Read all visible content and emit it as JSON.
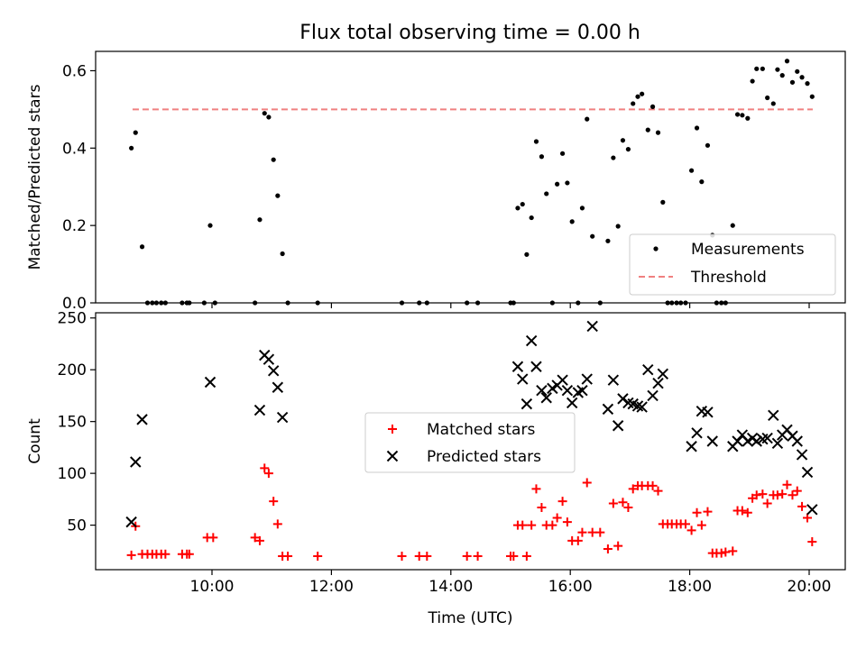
{
  "figure": {
    "title": "Flux total observing time = 0.00 h"
  },
  "chart_data": [
    {
      "type": "scatter",
      "ylabel": "Matched/Predicted stars",
      "xlabel": "",
      "xlim_hours": [
        8.05,
        20.6
      ],
      "ylim": [
        0,
        0.65
      ],
      "yticks": [
        "0.0",
        "0.2",
        "0.4",
        "0.6"
      ],
      "xticks_hours": [
        10,
        12,
        14,
        16,
        18,
        20
      ],
      "legend_position": "lower-right",
      "threshold": {
        "name": "Threshold",
        "value": 0.5,
        "x_range_hours": [
          8.67,
          20.06
        ],
        "color": "#f08080",
        "style": "dashed"
      },
      "series": [
        {
          "name": "Measurements",
          "color": "#000000",
          "marker": "dot",
          "points": [
            [
              8.65,
              0.4
            ],
            [
              8.72,
              0.44
            ],
            [
              8.83,
              0.145
            ],
            [
              8.92,
              0
            ],
            [
              9.0,
              0
            ],
            [
              9.07,
              0
            ],
            [
              9.15,
              0
            ],
            [
              9.22,
              0
            ],
            [
              9.5,
              0
            ],
            [
              9.58,
              0
            ],
            [
              9.62,
              0
            ],
            [
              9.87,
              0
            ],
            [
              9.97,
              0.2
            ],
            [
              10.05,
              0
            ],
            [
              10.72,
              0
            ],
            [
              10.8,
              0.215
            ],
            [
              10.88,
              0.49
            ],
            [
              10.95,
              0.48
            ],
            [
              11.03,
              0.37
            ],
            [
              11.1,
              0.277
            ],
            [
              11.18,
              0.127
            ],
            [
              11.27,
              0
            ],
            [
              11.77,
              0
            ],
            [
              13.18,
              0
            ],
            [
              13.47,
              0
            ],
            [
              13.6,
              0
            ],
            [
              14.27,
              0
            ],
            [
              14.45,
              0
            ],
            [
              15.0,
              0
            ],
            [
              15.05,
              0
            ],
            [
              15.12,
              0.245
            ],
            [
              15.2,
              0.255
            ],
            [
              15.27,
              0.125
            ],
            [
              15.35,
              0.22
            ],
            [
              15.43,
              0.417
            ],
            [
              15.52,
              0.378
            ],
            [
              15.6,
              0.282
            ],
            [
              15.7,
              0
            ],
            [
              15.78,
              0.307
            ],
            [
              15.87,
              0.386
            ],
            [
              15.95,
              0.31
            ],
            [
              16.03,
              0.21
            ],
            [
              16.13,
              0
            ],
            [
              16.2,
              0.245
            ],
            [
              16.28,
              0.475
            ],
            [
              16.37,
              0.172
            ],
            [
              16.5,
              0
            ],
            [
              16.63,
              0.16
            ],
            [
              16.72,
              0.375
            ],
            [
              16.8,
              0.198
            ],
            [
              16.88,
              0.42
            ],
            [
              16.97,
              0.397
            ],
            [
              17.05,
              0.515
            ],
            [
              17.13,
              0.533
            ],
            [
              17.2,
              0.54
            ],
            [
              17.3,
              0.447
            ],
            [
              17.38,
              0.507
            ],
            [
              17.47,
              0.44
            ],
            [
              17.55,
              0.26
            ],
            [
              17.63,
              0
            ],
            [
              17.7,
              0
            ],
            [
              17.78,
              0
            ],
            [
              17.85,
              0
            ],
            [
              17.93,
              0
            ],
            [
              18.03,
              0.342
            ],
            [
              18.12,
              0.452
            ],
            [
              18.2,
              0.313
            ],
            [
              18.3,
              0.407
            ],
            [
              18.38,
              0.175
            ],
            [
              18.45,
              0
            ],
            [
              18.53,
              0
            ],
            [
              18.6,
              0
            ],
            [
              18.72,
              0.2
            ],
            [
              18.8,
              0.487
            ],
            [
              18.88,
              0.485
            ],
            [
              18.97,
              0.477
            ],
            [
              19.05,
              0.573
            ],
            [
              19.12,
              0.605
            ],
            [
              19.22,
              0.605
            ],
            [
              19.3,
              0.53
            ],
            [
              19.4,
              0.515
            ],
            [
              19.47,
              0.603
            ],
            [
              19.55,
              0.588
            ],
            [
              19.63,
              0.625
            ],
            [
              19.72,
              0.57
            ],
            [
              19.8,
              0.598
            ],
            [
              19.88,
              0.583
            ],
            [
              19.97,
              0.567
            ],
            [
              20.05,
              0.533
            ]
          ]
        }
      ]
    },
    {
      "type": "scatter",
      "ylabel": "Count",
      "xlabel": "Time (UTC)",
      "xlim_hours": [
        8.05,
        20.6
      ],
      "ylim": [
        7,
        255
      ],
      "yticks": [
        "50",
        "100",
        "150",
        "200",
        "250"
      ],
      "xticks": [
        "10:00",
        "12:00",
        "14:00",
        "16:00",
        "18:00",
        "20:00"
      ],
      "xticks_hours": [
        10,
        12,
        14,
        16,
        18,
        20
      ],
      "legend_position": "center",
      "series": [
        {
          "name": "Matched stars",
          "color": "#ff0000",
          "marker": "plus",
          "points": [
            [
              8.65,
              21
            ],
            [
              8.72,
              49
            ],
            [
              8.83,
              22
            ],
            [
              8.92,
              22
            ],
            [
              9.0,
              22
            ],
            [
              9.07,
              22
            ],
            [
              9.15,
              22
            ],
            [
              9.22,
              22
            ],
            [
              9.5,
              22
            ],
            [
              9.58,
              22
            ],
            [
              9.62,
              22
            ],
            [
              9.92,
              38
            ],
            [
              10.02,
              38
            ],
            [
              10.72,
              38
            ],
            [
              10.8,
              35
            ],
            [
              10.88,
              105
            ],
            [
              10.95,
              100
            ],
            [
              11.03,
              73
            ],
            [
              11.1,
              51
            ],
            [
              11.18,
              20
            ],
            [
              11.27,
              20
            ],
            [
              11.77,
              20
            ],
            [
              13.18,
              20
            ],
            [
              13.47,
              20
            ],
            [
              13.6,
              20
            ],
            [
              14.27,
              20
            ],
            [
              14.45,
              20
            ],
            [
              15.0,
              20
            ],
            [
              15.05,
              20
            ],
            [
              15.12,
              50
            ],
            [
              15.2,
              50
            ],
            [
              15.27,
              20
            ],
            [
              15.35,
              50
            ],
            [
              15.43,
              85
            ],
            [
              15.52,
              67
            ],
            [
              15.6,
              50
            ],
            [
              15.7,
              50
            ],
            [
              15.78,
              57
            ],
            [
              15.87,
              73
            ],
            [
              15.95,
              53
            ],
            [
              16.03,
              35
            ],
            [
              16.13,
              35
            ],
            [
              16.2,
              43
            ],
            [
              16.28,
              91
            ],
            [
              16.37,
              43
            ],
            [
              16.5,
              43
            ],
            [
              16.63,
              27
            ],
            [
              16.72,
              71
            ],
            [
              16.8,
              30
            ],
            [
              16.88,
              72
            ],
            [
              16.97,
              67
            ],
            [
              17.05,
              85
            ],
            [
              17.13,
              88
            ],
            [
              17.2,
              88
            ],
            [
              17.3,
              88
            ],
            [
              17.38,
              88
            ],
            [
              17.47,
              83
            ],
            [
              17.55,
              51
            ],
            [
              17.63,
              51
            ],
            [
              17.7,
              51
            ],
            [
              17.78,
              51
            ],
            [
              17.85,
              51
            ],
            [
              17.93,
              51
            ],
            [
              18.03,
              45
            ],
            [
              18.12,
              62
            ],
            [
              18.2,
              50
            ],
            [
              18.3,
              63
            ],
            [
              18.38,
              23
            ],
            [
              18.45,
              23
            ],
            [
              18.53,
              23
            ],
            [
              18.6,
              24
            ],
            [
              18.72,
              25
            ],
            [
              18.8,
              64
            ],
            [
              18.88,
              64
            ],
            [
              18.97,
              62
            ],
            [
              19.05,
              76
            ],
            [
              19.12,
              79
            ],
            [
              19.22,
              80
            ],
            [
              19.3,
              71
            ],
            [
              19.4,
              79
            ],
            [
              19.47,
              79
            ],
            [
              19.55,
              80
            ],
            [
              19.63,
              89
            ],
            [
              19.72,
              79
            ],
            [
              19.8,
              83
            ],
            [
              19.88,
              68
            ],
            [
              19.97,
              57
            ],
            [
              20.05,
              34
            ]
          ]
        },
        {
          "name": "Predicted stars",
          "color": "#000000",
          "marker": "x",
          "points": [
            [
              8.65,
              53
            ],
            [
              8.72,
              111
            ],
            [
              8.83,
              152
            ],
            [
              9.97,
              188
            ],
            [
              10.8,
              161
            ],
            [
              10.88,
              214
            ],
            [
              10.95,
              210
            ],
            [
              11.03,
              199
            ],
            [
              11.1,
              183
            ],
            [
              11.18,
              154
            ],
            [
              15.12,
              203
            ],
            [
              15.2,
              191
            ],
            [
              15.27,
              167
            ],
            [
              15.35,
              228
            ],
            [
              15.43,
              203
            ],
            [
              15.52,
              180
            ],
            [
              15.6,
              173
            ],
            [
              15.7,
              182
            ],
            [
              15.78,
              185
            ],
            [
              15.87,
              190
            ],
            [
              15.95,
              180
            ],
            [
              16.03,
              168
            ],
            [
              16.13,
              178
            ],
            [
              16.2,
              180
            ],
            [
              16.28,
              191
            ],
            [
              16.37,
              242
            ],
            [
              16.63,
              162
            ],
            [
              16.72,
              190
            ],
            [
              16.8,
              146
            ],
            [
              16.88,
              172
            ],
            [
              16.97,
              168
            ],
            [
              17.05,
              167
            ],
            [
              17.13,
              165
            ],
            [
              17.2,
              164
            ],
            [
              17.3,
              200
            ],
            [
              17.38,
              175
            ],
            [
              17.47,
              187
            ],
            [
              17.55,
              196
            ],
            [
              18.03,
              126
            ],
            [
              18.12,
              139
            ],
            [
              18.2,
              160
            ],
            [
              18.3,
              159
            ],
            [
              18.38,
              131
            ],
            [
              18.72,
              126
            ],
            [
              18.8,
              131
            ],
            [
              18.88,
              137
            ],
            [
              18.97,
              131
            ],
            [
              19.05,
              134
            ],
            [
              19.12,
              131
            ],
            [
              19.22,
              133
            ],
            [
              19.3,
              134
            ],
            [
              19.4,
              156
            ],
            [
              19.47,
              129
            ],
            [
              19.55,
              137
            ],
            [
              19.63,
              142
            ],
            [
              19.72,
              136
            ],
            [
              19.8,
              131
            ],
            [
              19.88,
              118
            ],
            [
              19.97,
              101
            ],
            [
              20.05,
              65
            ]
          ]
        }
      ]
    }
  ]
}
